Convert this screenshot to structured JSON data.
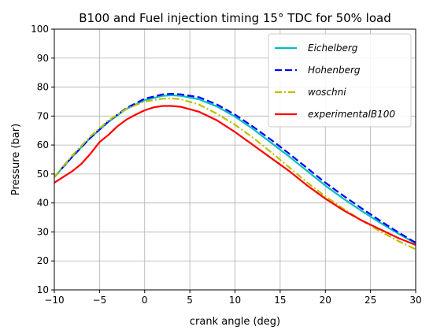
{
  "chart_data": {
    "type": "line",
    "title": "B100 and Fuel injection timing 15° TDC for 50% load",
    "xlabel": "crank angle (deg)",
    "ylabel": "Pressure (bar)",
    "xlim": [
      -10,
      30
    ],
    "ylim": [
      10,
      100
    ],
    "xticks": [
      -10,
      -5,
      0,
      5,
      10,
      15,
      20,
      25,
      30
    ],
    "yticks": [
      10,
      20,
      30,
      40,
      50,
      60,
      70,
      80,
      90,
      100
    ],
    "xtick_labels": [
      "−10",
      "−5",
      "0",
      "5",
      "10",
      "15",
      "20",
      "25",
      "30"
    ],
    "ytick_labels": [
      "10",
      "20",
      "30",
      "40",
      "50",
      "60",
      "70",
      "80",
      "90",
      "100"
    ],
    "grid": true,
    "legend_position": "top-right",
    "series": [
      {
        "name": "Eichelberg",
        "color": "#00bfbf",
        "style": "solid",
        "x": [
          -10,
          -8,
          -6,
          -4,
          -2,
          0,
          2,
          3,
          4,
          6,
          8,
          10,
          12,
          14,
          16,
          18,
          20,
          22,
          24,
          26,
          28,
          30
        ],
        "y": [
          49,
          56,
          62.5,
          68,
          72.5,
          75.5,
          77,
          77.2,
          77,
          75.8,
          73.3,
          69.8,
          65.5,
          60.8,
          56,
          51,
          46,
          41.5,
          37.3,
          33.3,
          29.6,
          26
        ]
      },
      {
        "name": "Hohenberg",
        "color": "#0000ff",
        "style": "dashed",
        "x": [
          -10,
          -8,
          -6,
          -4,
          -2,
          0,
          2,
          3,
          4,
          6,
          8,
          10,
          12,
          14,
          16,
          18,
          20,
          22,
          24,
          26,
          28,
          30
        ],
        "y": [
          49,
          56,
          62.5,
          68.2,
          72.8,
          76,
          77.5,
          77.7,
          77.5,
          76.5,
          74,
          70.5,
          66.3,
          61.8,
          57,
          52,
          47,
          42.5,
          38.2,
          34,
          30,
          26.3
        ]
      },
      {
        "name": "woschni",
        "color": "#bfbf00",
        "style": "dashdot",
        "x": [
          -10,
          -8,
          -6,
          -4,
          -2,
          0,
          2,
          3,
          4,
          6,
          8,
          10,
          12,
          14,
          16,
          18,
          20,
          22,
          24,
          26,
          28,
          30
        ],
        "y": [
          49,
          56.5,
          63,
          68.5,
          72.5,
          75,
          76,
          76.1,
          75.8,
          74,
          70.8,
          67,
          62.5,
          57.5,
          52.3,
          47,
          42.3,
          38,
          34,
          30.3,
          27,
          24
        ]
      },
      {
        "name": "experimentalB100",
        "color": "#ff0000",
        "style": "solid",
        "x": [
          -10,
          -8,
          -7,
          -6,
          -5,
          -4,
          -3,
          -2,
          -1,
          0,
          1,
          2,
          3,
          4,
          6,
          8,
          10,
          12,
          14,
          16,
          18,
          20,
          22,
          24,
          26,
          28,
          30
        ],
        "y": [
          47,
          51,
          53.5,
          57,
          61,
          63.5,
          66.5,
          68.8,
          70.5,
          72,
          73,
          73.5,
          73.5,
          73.2,
          71.5,
          68.5,
          64.5,
          60,
          55.5,
          51,
          46,
          41.5,
          37.5,
          34,
          31,
          28,
          25.5
        ]
      }
    ]
  }
}
